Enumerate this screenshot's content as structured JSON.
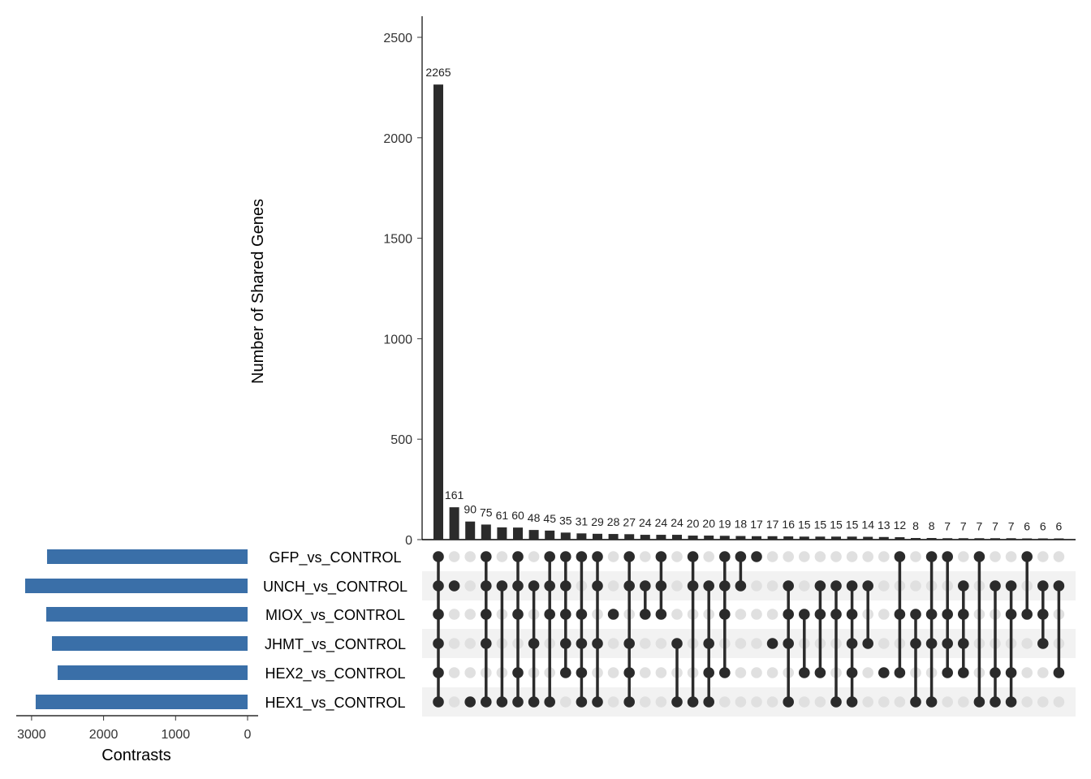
{
  "chart_data": {
    "type": "upset",
    "ylabel": "Number of Shared Genes",
    "ylim": [
      0,
      2600
    ],
    "yticks": [
      0,
      500,
      1000,
      1500,
      2000,
      2500
    ],
    "sets": [
      "GFP_vs_CONTROL",
      "UNCH_vs_CONTROL",
      "MIOX_vs_CONTROL",
      "JHMT_vs_CONTROL",
      "HEX2_vs_CONTROL",
      "HEX1_vs_CONTROL"
    ],
    "set_sizes": [
      2785,
      3089,
      2796,
      2717,
      2638,
      2943
    ],
    "set_size_label": "Contrasts",
    "set_size_ticks": [
      3000,
      2000,
      1000,
      0
    ],
    "intersections": [
      {
        "sets": [
          0,
          1,
          2,
          3,
          4,
          5
        ],
        "count": 2265
      },
      {
        "sets": [
          1
        ],
        "count": 161
      },
      {
        "sets": [
          5
        ],
        "count": 90
      },
      {
        "sets": [
          0,
          1,
          2,
          3,
          5
        ],
        "count": 75
      },
      {
        "sets": [
          1,
          5
        ],
        "count": 61
      },
      {
        "sets": [
          0,
          1,
          2,
          4,
          5
        ],
        "count": 60
      },
      {
        "sets": [
          1,
          3,
          5
        ],
        "count": 48
      },
      {
        "sets": [
          0,
          1,
          2,
          5
        ],
        "count": 45
      },
      {
        "sets": [
          0,
          1,
          2,
          3,
          4
        ],
        "count": 35
      },
      {
        "sets": [
          0,
          2,
          3,
          4,
          5
        ],
        "count": 31
      },
      {
        "sets": [
          0,
          1,
          3,
          5
        ],
        "count": 29
      },
      {
        "sets": [
          2
        ],
        "count": 28
      },
      {
        "sets": [
          0,
          1,
          3,
          4,
          5
        ],
        "count": 27
      },
      {
        "sets": [
          1,
          2
        ],
        "count": 24
      },
      {
        "sets": [
          0,
          1,
          2
        ],
        "count": 24
      },
      {
        "sets": [
          3,
          5
        ],
        "count": 24
      },
      {
        "sets": [
          0,
          1,
          5
        ],
        "count": 20
      },
      {
        "sets": [
          1,
          3,
          4,
          5
        ],
        "count": 20
      },
      {
        "sets": [
          0,
          1,
          2,
          4
        ],
        "count": 19
      },
      {
        "sets": [
          0,
          1
        ],
        "count": 18
      },
      {
        "sets": [
          0
        ],
        "count": 17
      },
      {
        "sets": [
          3
        ],
        "count": 17
      },
      {
        "sets": [
          1,
          2,
          3,
          5
        ],
        "count": 16
      },
      {
        "sets": [
          2,
          4
        ],
        "count": 15
      },
      {
        "sets": [
          1,
          2,
          4
        ],
        "count": 15
      },
      {
        "sets": [
          1,
          2,
          5
        ],
        "count": 15
      },
      {
        "sets": [
          1,
          2,
          3,
          4,
          5
        ],
        "count": 15
      },
      {
        "sets": [
          1,
          3
        ],
        "count": 14
      },
      {
        "sets": [
          4
        ],
        "count": 13
      },
      {
        "sets": [
          0,
          2,
          4
        ],
        "count": 12
      },
      {
        "sets": [
          2,
          3,
          5
        ],
        "count": 8
      },
      {
        "sets": [
          0,
          2,
          3,
          5
        ],
        "count": 8
      },
      {
        "sets": [
          0,
          2,
          3,
          4
        ],
        "count": 7
      },
      {
        "sets": [
          1,
          2,
          3,
          4
        ],
        "count": 7
      },
      {
        "sets": [
          0,
          5
        ],
        "count": 7
      },
      {
        "sets": [
          1,
          4,
          5
        ],
        "count": 7
      },
      {
        "sets": [
          1,
          2,
          4,
          5
        ],
        "count": 7
      },
      {
        "sets": [
          0,
          2
        ],
        "count": 6
      },
      {
        "sets": [
          1,
          2,
          3
        ],
        "count": 6
      },
      {
        "sets": [
          1,
          4
        ],
        "count": 6
      }
    ],
    "colors": {
      "bars": "#2b2b2b",
      "set_bars": "#3a6fa8",
      "dot_on": "#2b2b2b",
      "dot_off": "#e0e0e0",
      "stripe": "#f2f2f2"
    }
  }
}
